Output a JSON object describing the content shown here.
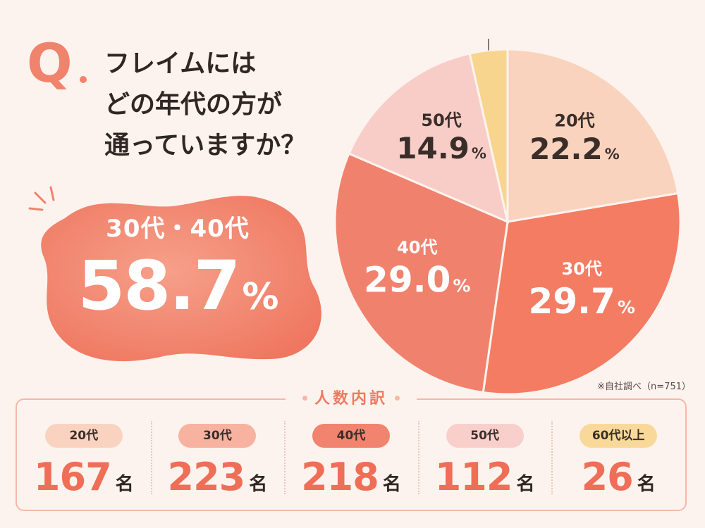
{
  "question": {
    "mark": "Q",
    "lines": [
      "フレイムには",
      "どの年代の方が",
      "通っていますか？"
    ]
  },
  "highlight": {
    "label": "30代・40代",
    "value": "58.7",
    "unit": "%"
  },
  "note": "※自社調べ（n=751）",
  "breakdown": {
    "title": "人数内訳",
    "unit": "名",
    "items": [
      {
        "label": "20代",
        "count": "167",
        "color": "#f9d3c0"
      },
      {
        "label": "30代",
        "count": "223",
        "color": "#f7b2a0"
      },
      {
        "label": "40代",
        "count": "218",
        "color": "#f2836f"
      },
      {
        "label": "50代",
        "count": "112",
        "color": "#f9cfcb"
      },
      {
        "label": "60代以上",
        "count": "26",
        "color": "#f9d99a"
      }
    ]
  },
  "chart_data": {
    "type": "pie",
    "start_angle_deg": 0,
    "direction": "clockwise",
    "slices": [
      {
        "label": "20代",
        "value": 22.2,
        "color": "#f9d3bd"
      },
      {
        "label": "30代",
        "value": 29.7,
        "color": "#f37c63"
      },
      {
        "label": "40代",
        "value": 29.0,
        "color": "#f0826d"
      },
      {
        "label": "50代",
        "value": 14.9,
        "color": "#f8cdc8"
      },
      {
        "label": "60代以上",
        "value": 3.5,
        "color": "#f8d58f"
      }
    ],
    "value_unit": "%"
  }
}
